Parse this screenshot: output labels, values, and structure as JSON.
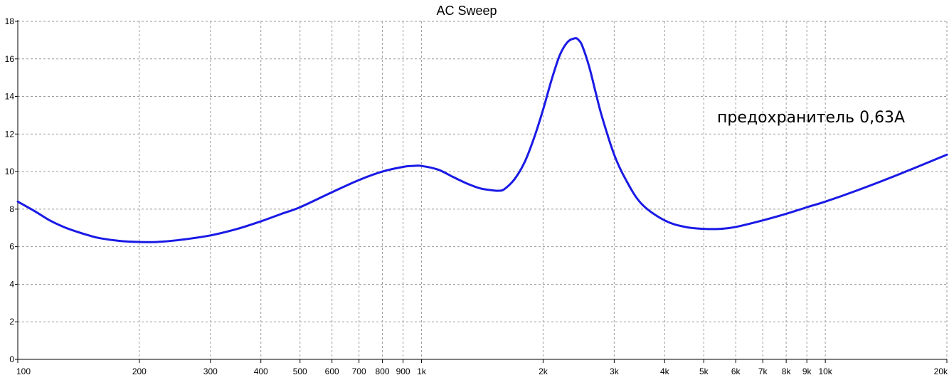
{
  "chart_data": {
    "type": "line",
    "title": "AC Sweep",
    "xlabel": "",
    "ylabel": "",
    "x_scale": "log",
    "xlim": [
      100,
      20000
    ],
    "ylim": [
      0,
      18
    ],
    "grid": true,
    "x_ticks": [
      100,
      200,
      300,
      400,
      500,
      600,
      700,
      800,
      900,
      1000,
      2000,
      3000,
      4000,
      5000,
      6000,
      7000,
      8000,
      9000,
      10000,
      20000
    ],
    "x_tick_labels": [
      "100",
      "200",
      "300",
      "400",
      "500",
      "600",
      "700",
      "800",
      "900",
      "1k",
      "2k",
      "3k",
      "4k",
      "5k",
      "6k",
      "7k",
      "8k",
      "9k",
      "10k",
      "20k"
    ],
    "y_ticks": [
      0,
      2,
      4,
      6,
      8,
      10,
      12,
      14,
      16,
      18
    ],
    "y_tick_labels": [
      "0",
      "2",
      "4",
      "6",
      "8",
      "10",
      "12",
      "14",
      "16",
      "18"
    ],
    "annotation": "предохранитель 0,63A",
    "series": [
      {
        "color": "#1a1ae6",
        "x": [
          100,
          110,
          120,
          130,
          140,
          150,
          160,
          180,
          200,
          220,
          250,
          300,
          350,
          400,
          450,
          500,
          600,
          700,
          800,
          900,
          950,
          1000,
          1100,
          1200,
          1300,
          1400,
          1500,
          1550,
          1600,
          1700,
          1800,
          1900,
          2000,
          2100,
          2200,
          2300,
          2400,
          2450,
          2500,
          2600,
          2700,
          2800,
          3000,
          3200,
          3500,
          4000,
          4500,
          5000,
          5500,
          6000,
          7000,
          8000,
          9000,
          10000,
          12000,
          15000,
          20000
        ],
        "y": [
          8.4,
          7.9,
          7.4,
          7.05,
          6.8,
          6.6,
          6.45,
          6.3,
          6.25,
          6.25,
          6.35,
          6.6,
          6.95,
          7.35,
          7.75,
          8.1,
          8.9,
          9.55,
          10.0,
          10.25,
          10.3,
          10.3,
          10.1,
          9.7,
          9.35,
          9.1,
          9.0,
          8.98,
          9.05,
          9.6,
          10.5,
          11.8,
          13.3,
          14.9,
          16.2,
          16.9,
          17.1,
          17.0,
          16.7,
          15.6,
          14.2,
          12.9,
          10.9,
          9.6,
          8.3,
          7.4,
          7.05,
          6.95,
          6.95,
          7.05,
          7.4,
          7.75,
          8.1,
          8.4,
          9.0,
          9.8,
          10.9
        ]
      }
    ]
  }
}
